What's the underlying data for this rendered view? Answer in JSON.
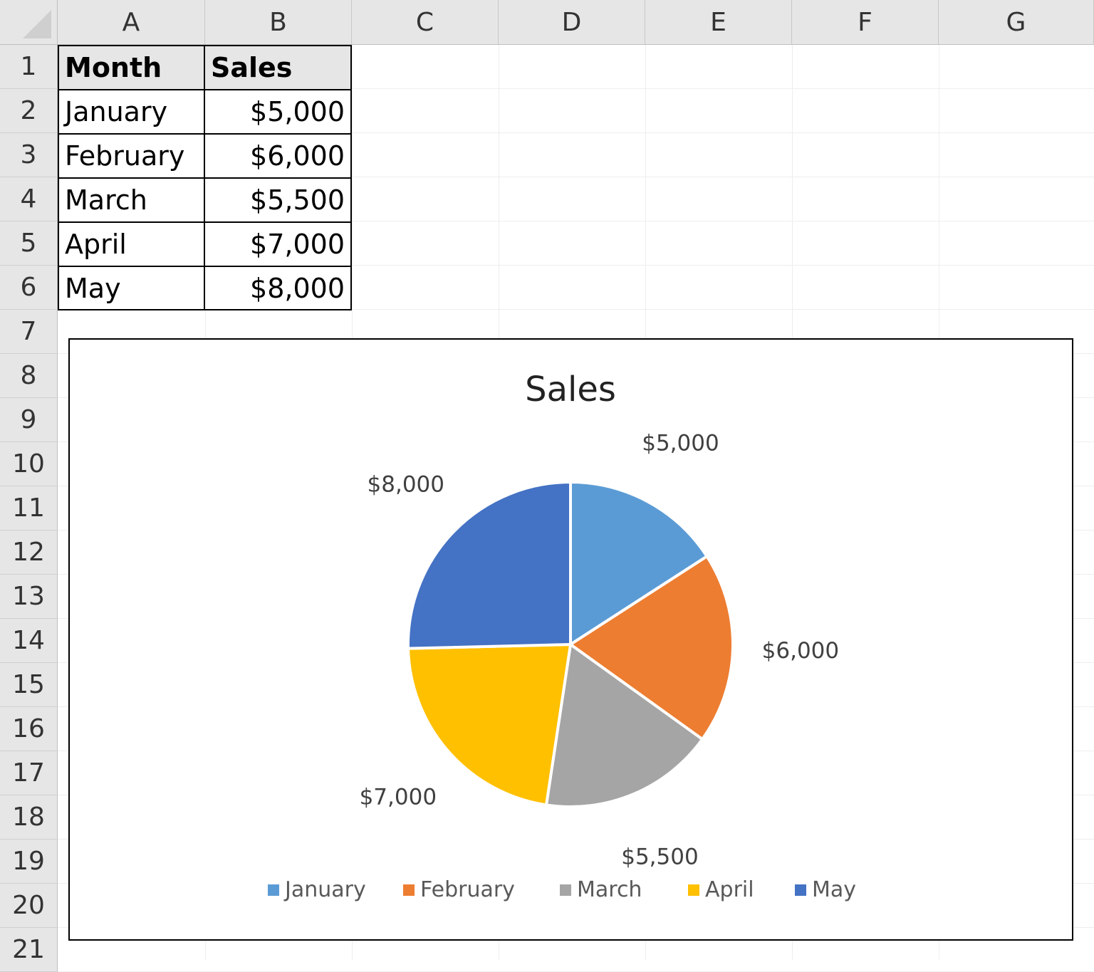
{
  "columns": [
    "A",
    "B",
    "C",
    "D",
    "E",
    "F",
    "G"
  ],
  "rows": [
    "1",
    "2",
    "3",
    "4",
    "5",
    "6",
    "7",
    "8",
    "9",
    "10",
    "11",
    "12",
    "13",
    "14",
    "15",
    "16",
    "17",
    "18",
    "19",
    "20",
    "21"
  ],
  "table": {
    "header": {
      "month": "Month",
      "sales": "Sales"
    },
    "rows": [
      {
        "month": "January",
        "sales": "$5,000"
      },
      {
        "month": "February",
        "sales": "$6,000"
      },
      {
        "month": "March",
        "sales": "$5,500"
      },
      {
        "month": "April",
        "sales": "$7,000"
      },
      {
        "month": "May",
        "sales": "$8,000"
      }
    ]
  },
  "chart_data": {
    "type": "pie",
    "title": "Sales",
    "categories": [
      "January",
      "February",
      "March",
      "April",
      "May"
    ],
    "values": [
      5000,
      6000,
      5500,
      7000,
      8000
    ],
    "data_labels": [
      "$5,000",
      "$6,000",
      "$5,500",
      "$7,000",
      "$8,000"
    ],
    "colors": [
      "#5b9bd5",
      "#ed7d31",
      "#a5a5a5",
      "#ffc000",
      "#4472c4"
    ],
    "legend": "bottom"
  }
}
